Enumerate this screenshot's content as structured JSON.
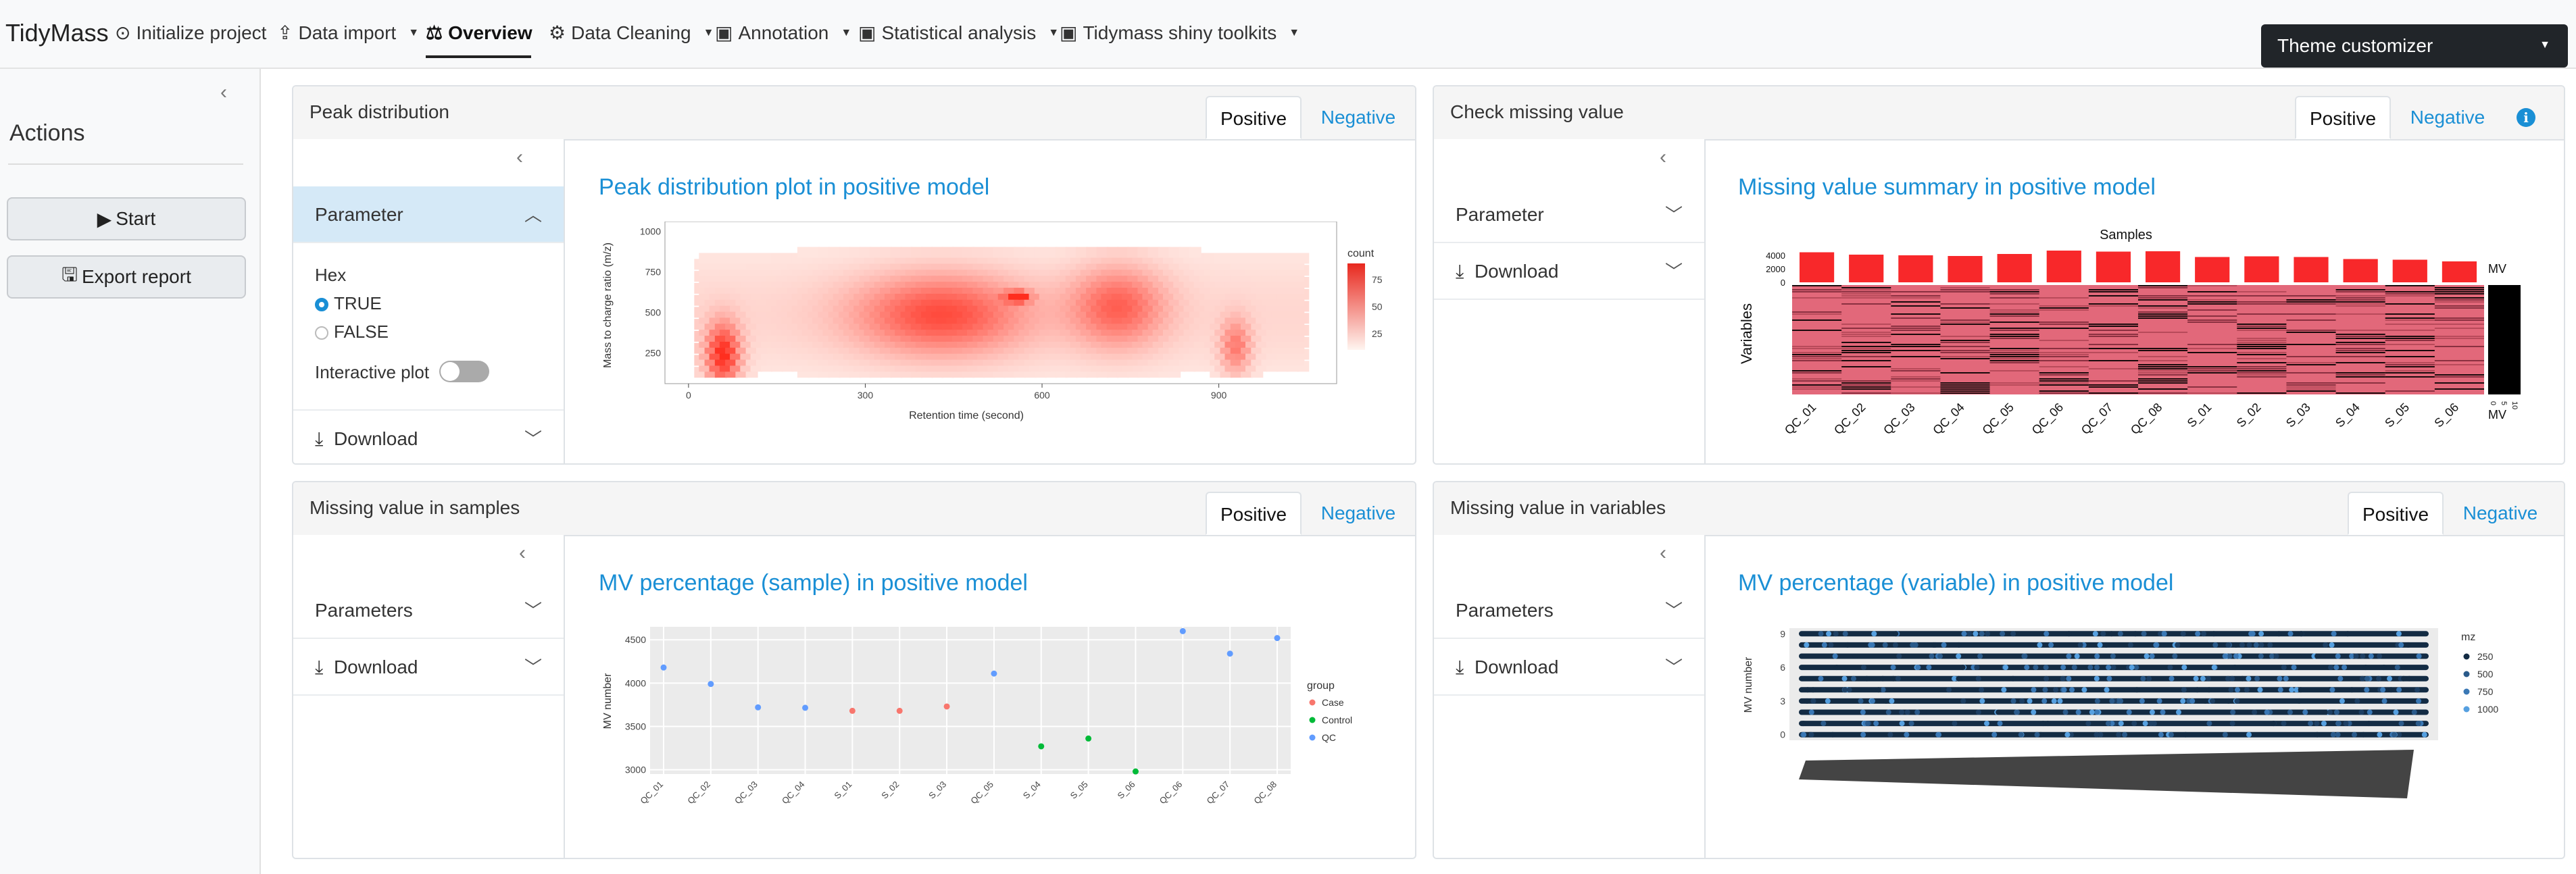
{
  "navbar": {
    "brand": "TidyMass",
    "items": [
      {
        "label": "Initialize project",
        "icon": "play-circle-icon"
      },
      {
        "label": "Data import",
        "icon": "upload-icon"
      },
      {
        "label": "Overview",
        "icon": "scale-icon"
      },
      {
        "label": "Data Cleaning",
        "icon": "nodes-icon"
      },
      {
        "label": "Annotation",
        "icon": "id-card-icon"
      },
      {
        "label": "Statistical analysis",
        "icon": "id-card-icon"
      },
      {
        "label": "Tidymass shiny toolkits",
        "icon": "id-card-icon"
      }
    ],
    "theme_button": "Theme customizer"
  },
  "sidebar": {
    "title": "Actions",
    "start_button": "Start",
    "export_button": "Export report"
  },
  "tabs": {
    "positive": "Positive",
    "negative": "Negative"
  },
  "cards": {
    "peak": {
      "title": "Peak distribution",
      "parameter": "Parameter",
      "hex_label": "Hex",
      "hex_true": "TRUE",
      "hex_false": "FALSE",
      "interactive_label": "Interactive plot",
      "download": "Download",
      "plot_title": "Peak distribution plot in positive model"
    },
    "missing": {
      "title": "Check missing value",
      "parameter": "Parameter",
      "download": "Download",
      "plot_title": "Missing value summary in positive model"
    },
    "samples": {
      "title": "Missing value in samples",
      "parameters": "Parameters",
      "download": "Download",
      "plot_title": "MV percentage (sample) in positive model"
    },
    "variables": {
      "title": "Missing value in variables",
      "parameters": "Parameters",
      "download": "Download",
      "plot_title": "MV percentage (variable) in positive model"
    }
  },
  "colors": {
    "accent": "#1a8fd5",
    "navbar_bg": "#f8f9fa",
    "theme_btn": "#212529",
    "case": "#f8766d",
    "control": "#00ba38",
    "qc": "#619cff",
    "mv_red": "#f8282a"
  },
  "chart_data": [
    {
      "type": "heatmap",
      "title": "",
      "xlabel": "Retention time (second)",
      "ylabel": "Mass to charge ratio (m/z)",
      "x_ticks": [
        0,
        300,
        600,
        900
      ],
      "y_ticks": [
        250,
        500,
        750,
        1000
      ],
      "legend_title": "count",
      "legend_ticks": [
        25,
        50,
        75
      ]
    },
    {
      "type": "heatmap",
      "title": "Samples",
      "ylabel": "Variables",
      "categories": [
        "QC_01",
        "QC_02",
        "QC_03",
        "QC_04",
        "QC_05",
        "QC_06",
        "QC_07",
        "QC_08",
        "S_01",
        "S_02",
        "S_03",
        "S_04",
        "S_05",
        "S_06"
      ],
      "bar_y_ticks": [
        4000,
        2000,
        0
      ],
      "bar_values": [
        4450,
        4100,
        4000,
        3900,
        4200,
        4700,
        4550,
        4600,
        3750,
        3850,
        3750,
        3450,
        3350,
        3100
      ],
      "side_label": "MV",
      "side_ticks": [
        "0",
        "5",
        "10"
      ]
    },
    {
      "type": "scatter",
      "title": "",
      "xlabel": "",
      "ylabel": "MV number",
      "ylim": [
        2950,
        4650
      ],
      "y_ticks": [
        3000,
        3500,
        4000,
        4500
      ],
      "categories": [
        "QC_01",
        "QC_02",
        "QC_03",
        "QC_04",
        "S_01",
        "S_02",
        "S_03",
        "QC_05",
        "S_04",
        "S_05",
        "S_06",
        "QC_06",
        "QC_07",
        "QC_08"
      ],
      "values": [
        4180,
        3990,
        3720,
        3715,
        3680,
        3680,
        3730,
        4110,
        3270,
        3360,
        2980,
        4600,
        4340,
        4520
      ],
      "groups": [
        "QC",
        "QC",
        "QC",
        "QC",
        "Case",
        "Case",
        "Case",
        "QC",
        "Control",
        "Control",
        "Control",
        "QC",
        "QC",
        "QC"
      ],
      "legend_title": "group",
      "legend": [
        "Case",
        "Control",
        "QC"
      ]
    },
    {
      "type": "scatter",
      "title": "",
      "ylabel": "MV number",
      "y_ticks": [
        0,
        3,
        6,
        9
      ],
      "legend_title": "mz",
      "legend": [
        "250",
        "500",
        "750",
        "1000"
      ]
    }
  ]
}
